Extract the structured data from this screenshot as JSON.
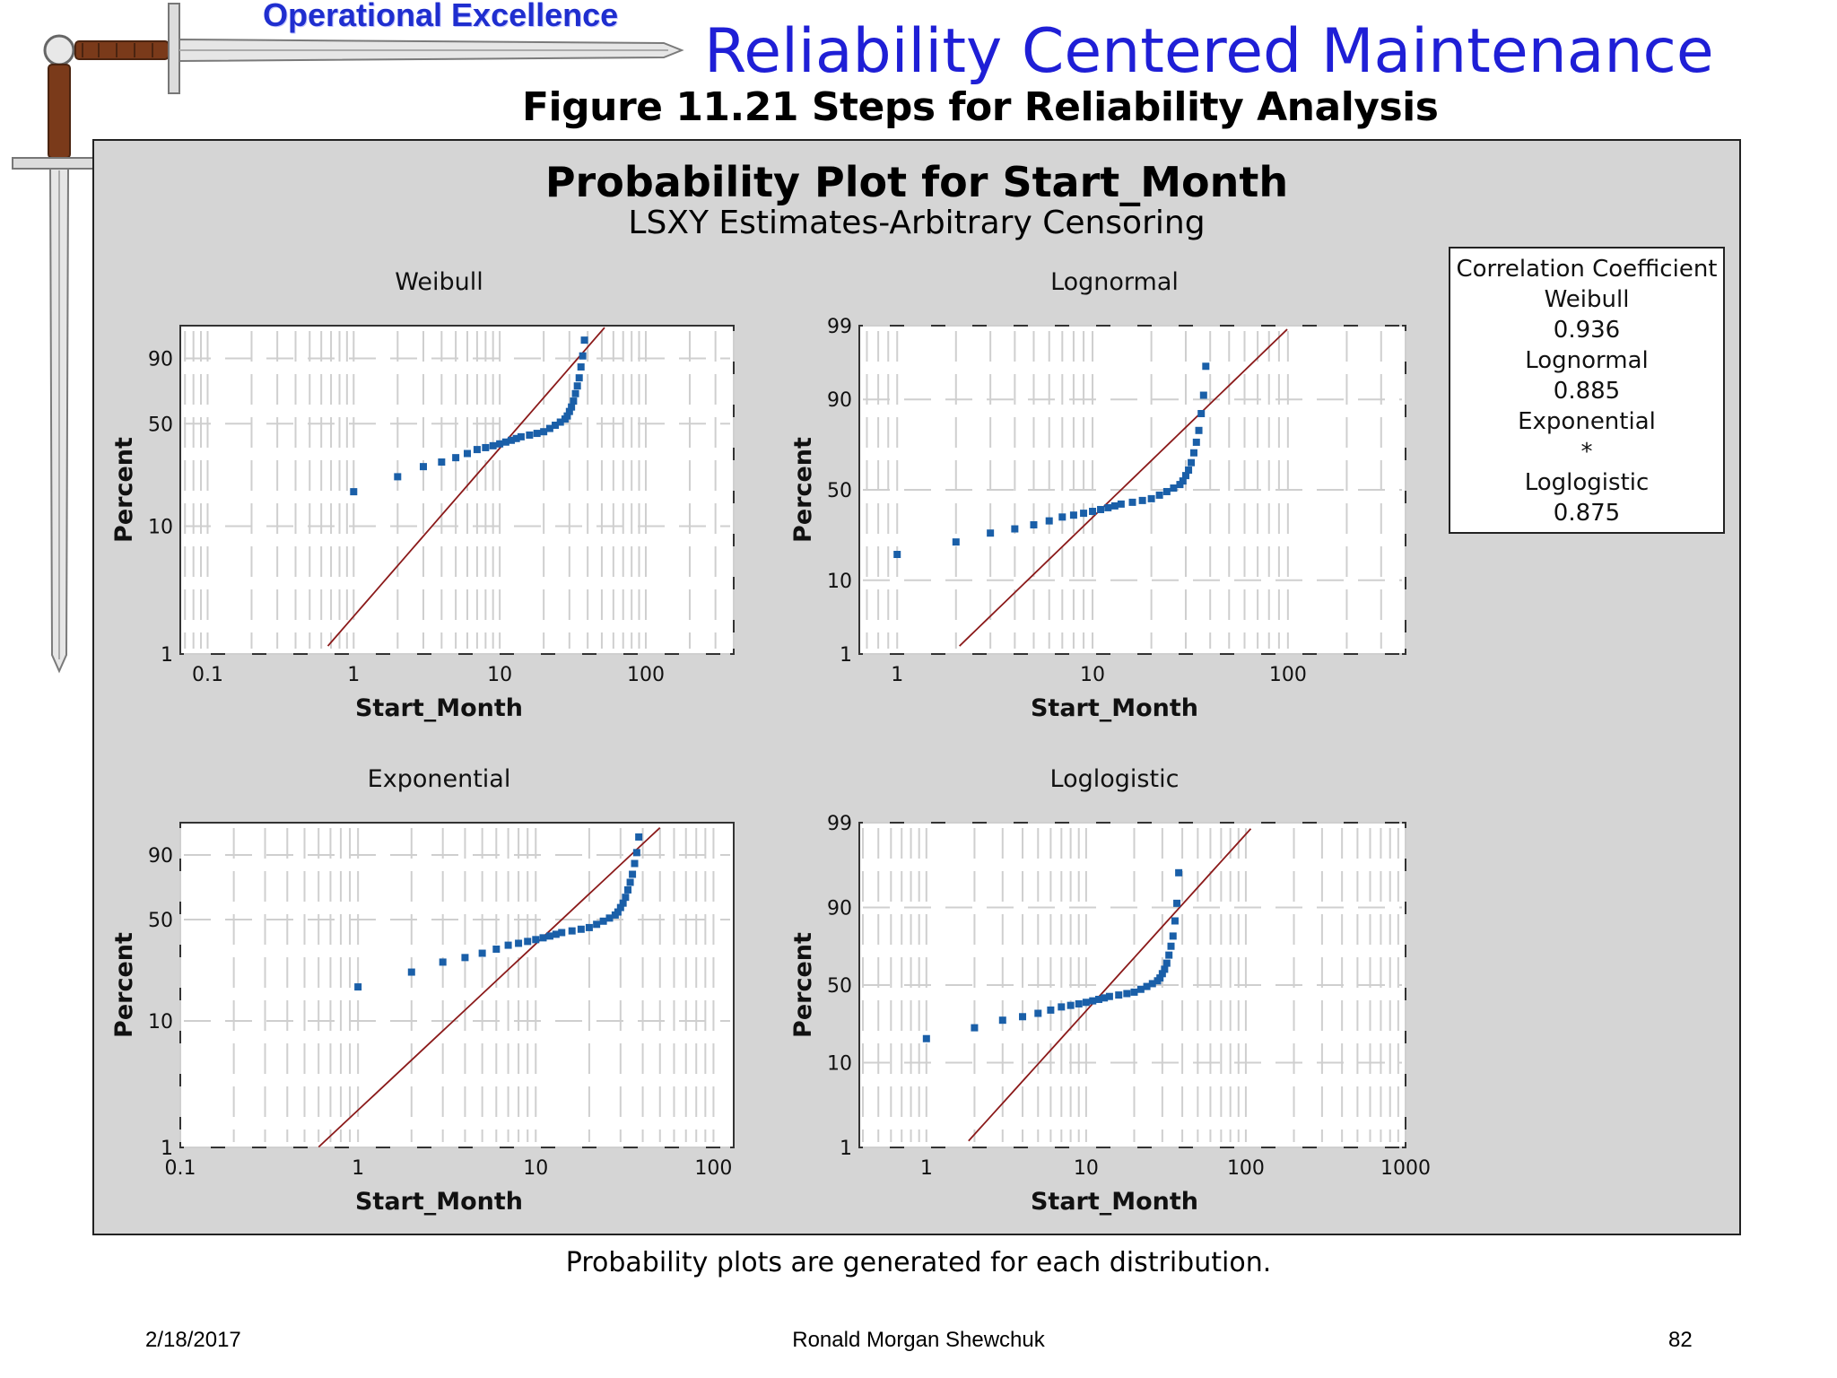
{
  "header": {
    "brand_label": "Operational Excellence",
    "slide_title": "Reliability Centered Maintenance",
    "figure_caption": "Figure 11.21  Steps for Reliability Analysis"
  },
  "chart_title": "Probability Plot for Start_Month",
  "chart_subtitle": "LSXY Estimates-Arbitrary Censoring",
  "legend": {
    "title": "Correlation Coefficient",
    "entries": [
      {
        "name": "Weibull",
        "value": "0.936"
      },
      {
        "name": "Lognormal",
        "value": "0.885"
      },
      {
        "name": "Exponential",
        "value": "*"
      },
      {
        "name": "Loglogistic",
        "value": "0.875"
      }
    ]
  },
  "colors": {
    "points": "#1a5fa8",
    "fit_line": "#8b1a1a",
    "panel": "#d5d5d5",
    "title_blue": "#1f1fd6"
  },
  "chart_data": [
    {
      "type": "scatter",
      "title": "Weibull",
      "xlabel": "Start_Month",
      "ylabel": "Percent",
      "x_ticks": [
        "0.1",
        "1",
        "10",
        "100"
      ],
      "y_ticks": [
        "1",
        "10",
        "50",
        "90"
      ],
      "x_scale": "log",
      "y_scale": "weibull",
      "fit_line": true,
      "points": [
        [
          1,
          18
        ],
        [
          2,
          23
        ],
        [
          3,
          27
        ],
        [
          4,
          29
        ],
        [
          5,
          31
        ],
        [
          6,
          33
        ],
        [
          7,
          35
        ],
        [
          8,
          36
        ],
        [
          9,
          37
        ],
        [
          10,
          38
        ],
        [
          11,
          39
        ],
        [
          12,
          40
        ],
        [
          13,
          41
        ],
        [
          14,
          42
        ],
        [
          16,
          43
        ],
        [
          18,
          44
        ],
        [
          20,
          45
        ],
        [
          22,
          47
        ],
        [
          24,
          49
        ],
        [
          26,
          51
        ],
        [
          28,
          53
        ],
        [
          29,
          55
        ],
        [
          30,
          58
        ],
        [
          31,
          61
        ],
        [
          32,
          65
        ],
        [
          33,
          70
        ],
        [
          34,
          75
        ],
        [
          35,
          80
        ],
        [
          36,
          86
        ],
        [
          37,
          91
        ],
        [
          38,
          96
        ]
      ]
    },
    {
      "type": "scatter",
      "title": "Lognormal",
      "xlabel": "Start_Month",
      "ylabel": "Percent",
      "x_ticks": [
        "1",
        "10",
        "100"
      ],
      "y_ticks": [
        "1",
        "10",
        "50",
        "90",
        "99"
      ],
      "x_scale": "log",
      "y_scale": "normal",
      "fit_line": true,
      "points": [
        [
          1,
          18
        ],
        [
          2,
          23
        ],
        [
          3,
          27
        ],
        [
          4,
          29
        ],
        [
          5,
          31
        ],
        [
          6,
          33
        ],
        [
          7,
          35
        ],
        [
          8,
          36
        ],
        [
          9,
          37
        ],
        [
          10,
          38
        ],
        [
          11,
          39
        ],
        [
          12,
          40
        ],
        [
          13,
          41
        ],
        [
          14,
          42
        ],
        [
          16,
          43
        ],
        [
          18,
          44
        ],
        [
          20,
          45
        ],
        [
          22,
          47
        ],
        [
          24,
          49
        ],
        [
          26,
          51
        ],
        [
          28,
          53
        ],
        [
          29,
          55
        ],
        [
          30,
          58
        ],
        [
          31,
          61
        ],
        [
          32,
          65
        ],
        [
          33,
          70
        ],
        [
          34,
          75
        ],
        [
          35,
          80
        ],
        [
          36,
          86
        ],
        [
          37,
          91
        ],
        [
          38,
          96
        ]
      ]
    },
    {
      "type": "scatter",
      "title": "Exponential",
      "xlabel": "Start_Month",
      "ylabel": "Percent",
      "x_ticks": [
        "0.1",
        "1",
        "10",
        "100"
      ],
      "y_ticks": [
        "1",
        "10",
        "50",
        "90"
      ],
      "x_scale": "log",
      "y_scale": "weibull",
      "fit_line": true,
      "points": [
        [
          1,
          18
        ],
        [
          2,
          23
        ],
        [
          3,
          27
        ],
        [
          4,
          29
        ],
        [
          5,
          31
        ],
        [
          6,
          33
        ],
        [
          7,
          35
        ],
        [
          8,
          36
        ],
        [
          9,
          37
        ],
        [
          10,
          38
        ],
        [
          11,
          39
        ],
        [
          12,
          40
        ],
        [
          13,
          41
        ],
        [
          14,
          42
        ],
        [
          16,
          43
        ],
        [
          18,
          44
        ],
        [
          20,
          45
        ],
        [
          22,
          47
        ],
        [
          24,
          49
        ],
        [
          26,
          51
        ],
        [
          28,
          53
        ],
        [
          29,
          55
        ],
        [
          30,
          58
        ],
        [
          31,
          61
        ],
        [
          32,
          65
        ],
        [
          33,
          70
        ],
        [
          34,
          75
        ],
        [
          35,
          80
        ],
        [
          36,
          86
        ],
        [
          37,
          91
        ],
        [
          38,
          96
        ]
      ]
    },
    {
      "type": "scatter",
      "title": "Loglogistic",
      "xlabel": "Start_Month",
      "ylabel": "Percent",
      "x_ticks": [
        "1",
        "10",
        "100",
        "1000"
      ],
      "y_ticks": [
        "1",
        "10",
        "50",
        "90",
        "99"
      ],
      "x_scale": "log",
      "y_scale": "logistic",
      "fit_line": true,
      "points": [
        [
          1,
          18
        ],
        [
          2,
          23
        ],
        [
          3,
          27
        ],
        [
          4,
          29
        ],
        [
          5,
          31
        ],
        [
          6,
          33
        ],
        [
          7,
          35
        ],
        [
          8,
          36
        ],
        [
          9,
          37
        ],
        [
          10,
          38
        ],
        [
          11,
          39
        ],
        [
          12,
          40
        ],
        [
          13,
          41
        ],
        [
          14,
          42
        ],
        [
          16,
          43
        ],
        [
          18,
          44
        ],
        [
          20,
          45
        ],
        [
          22,
          47
        ],
        [
          24,
          49
        ],
        [
          26,
          51
        ],
        [
          28,
          53
        ],
        [
          29,
          55
        ],
        [
          30,
          58
        ],
        [
          31,
          61
        ],
        [
          32,
          65
        ],
        [
          33,
          70
        ],
        [
          34,
          75
        ],
        [
          35,
          80
        ],
        [
          36,
          86
        ],
        [
          37,
          91
        ],
        [
          38,
          96
        ]
      ]
    }
  ],
  "bottom_caption": "Probability plots are generated for each distribution.",
  "footer": {
    "date": "2/18/2017",
    "author": "Ronald Morgan Shewchuk",
    "page": "82"
  }
}
